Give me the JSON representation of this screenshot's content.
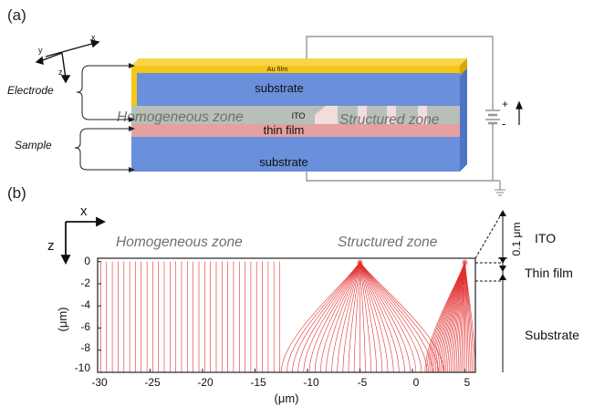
{
  "panel_a": {
    "label": "(a)",
    "axes": {
      "x": "x",
      "y": "y",
      "z": "z"
    },
    "side_labels": {
      "electrode": "Electrode",
      "sample": "Sample"
    },
    "layers": {
      "au_film": "Au film",
      "substrate_top": "substrate",
      "ito": "ITO",
      "thin_film": "thin film",
      "substrate_bottom": "substrate"
    },
    "zones": {
      "homogeneous": "Homogeneous zone",
      "structured": "Structured zone"
    },
    "battery": {
      "plus": "+",
      "minus": "-"
    },
    "colors": {
      "au": "#F5C518",
      "substrate": "#6A8FDB",
      "ito": "#B8BFB7",
      "thin_film": "#E5A0A0",
      "wire": "#999999"
    }
  },
  "panel_b": {
    "label": "(b)",
    "axis_arrows": {
      "x": "x",
      "z": "z"
    },
    "zones": {
      "homogeneous": "Homogeneous zone",
      "structured": "Structured zone"
    },
    "right_labels": {
      "ito": "ITO",
      "thin_film": "Thin film",
      "substrate": "Substrate",
      "ito_thickness": "0.1 μm"
    },
    "ylabel": "(μm)",
    "xlabel": "(μm)",
    "x_ticks": [
      "-30",
      "-25",
      "-20",
      "-15",
      "-10",
      "-5",
      "0",
      "5"
    ],
    "y_ticks": [
      "0",
      "-2",
      "-4",
      "-6",
      "-8",
      "-10"
    ],
    "line_color": "#E23030"
  },
  "chart_data": {
    "type": "line",
    "description_source": "field lines in thin film/substrate",
    "xlim": [
      -30,
      6
    ],
    "ylim": [
      -10,
      0.3
    ],
    "field_sources_x": [
      -5,
      5
    ]
  }
}
